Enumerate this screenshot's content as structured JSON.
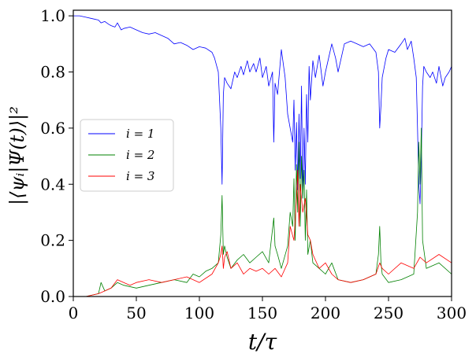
{
  "chart_data": {
    "type": "line",
    "title": "",
    "xlabel": "t/τ",
    "ylabel": "|⟨ψᵢ|Ψ(t)⟩|²",
    "xlim": [
      0,
      300
    ],
    "ylim": [
      0,
      1.02
    ],
    "xticks": [
      0,
      50,
      100,
      150,
      200,
      250,
      300
    ],
    "yticks": [
      0.0,
      0.2,
      0.4,
      0.6,
      0.8,
      1.0
    ],
    "xtick_labels": [
      "0",
      "50",
      "100",
      "150",
      "200",
      "250",
      "300"
    ],
    "ytick_labels": [
      "0.0",
      "0.2",
      "0.4",
      "0.6",
      "0.8",
      "1.0"
    ],
    "grid": false,
    "legend_position": "center-left",
    "series": [
      {
        "name": "i = 1",
        "color": "#0000ff",
        "x": [
          0,
          5,
          10,
          15,
          20,
          22,
          25,
          28,
          30,
          33,
          35,
          38,
          40,
          45,
          50,
          55,
          60,
          65,
          70,
          75,
          80,
          85,
          90,
          95,
          100,
          105,
          110,
          112,
          115,
          117,
          118,
          119,
          120,
          122,
          125,
          128,
          130,
          133,
          135,
          138,
          140,
          143,
          145,
          148,
          150,
          153,
          155,
          158,
          159,
          160,
          162,
          165,
          168,
          170,
          172,
          174,
          175,
          176,
          177,
          178,
          179,
          180,
          181,
          182,
          183,
          184,
          185,
          186,
          187,
          188,
          190,
          192,
          195,
          198,
          200,
          203,
          205,
          208,
          210,
          215,
          220,
          225,
          230,
          235,
          240,
          242,
          243,
          244,
          245,
          248,
          250,
          255,
          260,
          263,
          265,
          268,
          270,
          272,
          273,
          274,
          275,
          276,
          277,
          278,
          280,
          283,
          285,
          288,
          290,
          293,
          295,
          298,
          300
        ],
        "y": [
          1.0,
          1.0,
          0.995,
          0.99,
          0.985,
          0.975,
          0.98,
          0.97,
          0.965,
          0.96,
          0.975,
          0.95,
          0.955,
          0.96,
          0.95,
          0.94,
          0.935,
          0.94,
          0.93,
          0.92,
          0.9,
          0.905,
          0.895,
          0.88,
          0.89,
          0.885,
          0.87,
          0.85,
          0.8,
          0.6,
          0.4,
          0.72,
          0.78,
          0.76,
          0.74,
          0.8,
          0.78,
          0.82,
          0.79,
          0.84,
          0.8,
          0.83,
          0.8,
          0.85,
          0.78,
          0.82,
          0.75,
          0.8,
          0.55,
          0.76,
          0.72,
          0.88,
          0.78,
          0.65,
          0.6,
          0.55,
          0.7,
          0.45,
          0.62,
          0.38,
          0.65,
          0.42,
          0.75,
          0.35,
          0.6,
          0.4,
          0.72,
          0.55,
          0.82,
          0.7,
          0.84,
          0.78,
          0.86,
          0.75,
          0.8,
          0.86,
          0.9,
          0.85,
          0.8,
          0.9,
          0.91,
          0.9,
          0.89,
          0.9,
          0.87,
          0.8,
          0.6,
          0.68,
          0.78,
          0.85,
          0.88,
          0.87,
          0.9,
          0.92,
          0.88,
          0.91,
          0.85,
          0.78,
          0.6,
          0.4,
          0.33,
          0.5,
          0.75,
          0.82,
          0.8,
          0.78,
          0.8,
          0.76,
          0.82,
          0.75,
          0.78,
          0.8,
          0.82
        ]
      },
      {
        "name": "i = 2",
        "color": "#008000",
        "x": [
          0,
          10,
          20,
          22,
          25,
          30,
          35,
          40,
          50,
          60,
          70,
          80,
          90,
          95,
          100,
          105,
          110,
          115,
          117,
          118,
          119,
          120,
          122,
          125,
          130,
          135,
          140,
          145,
          150,
          155,
          159,
          160,
          162,
          165,
          170,
          172,
          174,
          175,
          176,
          177,
          178,
          179,
          180,
          181,
          182,
          183,
          184,
          185,
          186,
          188,
          190,
          195,
          200,
          205,
          210,
          220,
          230,
          240,
          242,
          243,
          244,
          245,
          250,
          260,
          270,
          273,
          274,
          275,
          276,
          277,
          280,
          290,
          300
        ],
        "y": [
          0.0,
          0.0,
          0.01,
          0.05,
          0.02,
          0.03,
          0.05,
          0.04,
          0.03,
          0.04,
          0.05,
          0.06,
          0.05,
          0.08,
          0.07,
          0.09,
          0.1,
          0.12,
          0.22,
          0.36,
          0.15,
          0.18,
          0.14,
          0.1,
          0.13,
          0.15,
          0.12,
          0.14,
          0.16,
          0.12,
          0.28,
          0.18,
          0.15,
          0.1,
          0.18,
          0.3,
          0.25,
          0.42,
          0.2,
          0.47,
          0.3,
          0.55,
          0.25,
          0.5,
          0.35,
          0.45,
          0.2,
          0.38,
          0.15,
          0.2,
          0.12,
          0.1,
          0.08,
          0.12,
          0.06,
          0.05,
          0.06,
          0.08,
          0.15,
          0.25,
          0.12,
          0.08,
          0.05,
          0.06,
          0.08,
          0.3,
          0.55,
          0.4,
          0.6,
          0.2,
          0.1,
          0.12,
          0.08
        ]
      },
      {
        "name": "i = 3",
        "color": "#ff0000",
        "x": [
          0,
          10,
          20,
          25,
          30,
          35,
          40,
          45,
          50,
          60,
          70,
          80,
          90,
          100,
          110,
          115,
          117,
          118,
          119,
          120,
          122,
          125,
          130,
          135,
          140,
          145,
          150,
          155,
          160,
          165,
          170,
          172,
          175,
          177,
          178,
          179,
          180,
          182,
          184,
          186,
          188,
          190,
          195,
          200,
          205,
          210,
          220,
          230,
          240,
          243,
          245,
          250,
          260,
          270,
          275,
          280,
          290,
          300
        ],
        "y": [
          0.0,
          0.0,
          0.01,
          0.02,
          0.03,
          0.06,
          0.05,
          0.04,
          0.05,
          0.06,
          0.05,
          0.06,
          0.07,
          0.05,
          0.08,
          0.12,
          0.15,
          0.18,
          0.1,
          0.14,
          0.16,
          0.1,
          0.12,
          0.08,
          0.1,
          0.09,
          0.1,
          0.08,
          0.1,
          0.07,
          0.12,
          0.25,
          0.2,
          0.35,
          0.45,
          0.25,
          0.4,
          0.3,
          0.35,
          0.22,
          0.2,
          0.15,
          0.1,
          0.12,
          0.08,
          0.06,
          0.05,
          0.06,
          0.08,
          0.12,
          0.1,
          0.08,
          0.12,
          0.1,
          0.14,
          0.12,
          0.15,
          0.12
        ]
      }
    ]
  }
}
